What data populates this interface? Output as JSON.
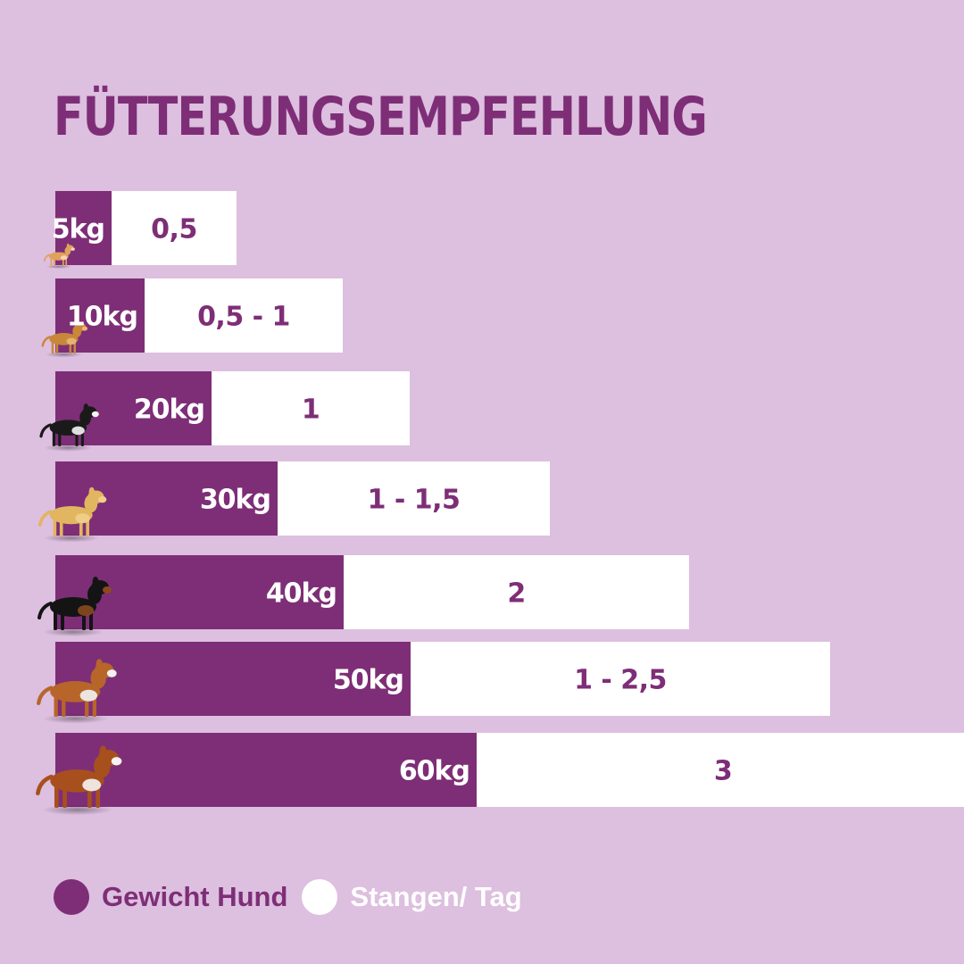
{
  "chart_data": {
    "type": "bar",
    "orientation": "horizontal",
    "stacked": true,
    "title": "FÜTTERUNGSEMPFEHLUNG",
    "categories": [
      "5kg",
      "10kg",
      "20kg",
      "30kg",
      "40kg",
      "50kg",
      "60kg"
    ],
    "series": [
      {
        "name": "Gewicht Hund",
        "values": [
          5,
          10,
          20,
          30,
          40,
          50,
          60
        ],
        "color": "#7e2e77"
      },
      {
        "name": "Stangen/ Tag",
        "values": [
          0.5,
          1,
          1,
          1.5,
          2,
          2.5,
          3
        ],
        "labels": [
          "0,5",
          "0,5 - 1",
          "1",
          "1 - 1,5",
          "2",
          "1 - 2,5",
          "3"
        ],
        "color": "#ffffff"
      }
    ],
    "dogs": [
      "chihuahua-icon",
      "small-mixed-dog-icon",
      "border-collie-icon",
      "labrador-icon",
      "rottweiler-icon",
      "boxer-icon",
      "saint-bernard-icon"
    ],
    "legend": {
      "placement": "bottom-left",
      "items": [
        {
          "label": "Gewicht Hund",
          "color": "#7e2e77"
        },
        {
          "label": "Stangen/ Tag",
          "color": "#ffffff"
        }
      ]
    },
    "grid": false
  },
  "colors": {
    "background": "#ddbfdf",
    "accent": "#7e2e77",
    "white": "#ffffff"
  }
}
